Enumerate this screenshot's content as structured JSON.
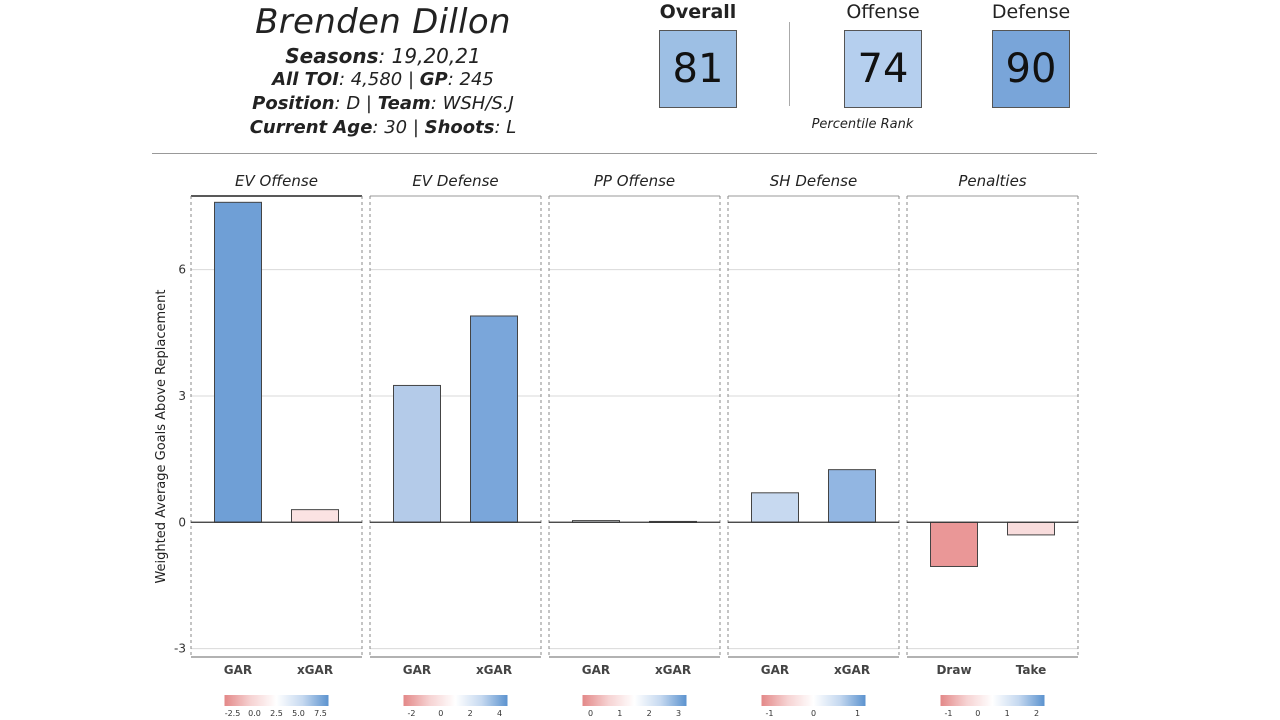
{
  "player": {
    "name": "Brenden Dillon",
    "seasons_label": "Seasons",
    "seasons": ": 19,20,21",
    "toi_label": "All TOI",
    "toi": ": 4,580 | ",
    "gp_label": "GP",
    "gp": ": 245",
    "position_label": "Position",
    "position": ": D | ",
    "team_label": "Team",
    "team": ": WSH/S.J",
    "age_label": "Current Age",
    "age": ": 30 | ",
    "shoots_label": "Shoots",
    "shoots": ": L"
  },
  "ratings": {
    "overall_label": "Overall",
    "overall": "81",
    "offense_label": "Offense",
    "offense": "74",
    "defense_label": "Defense",
    "defense": "90",
    "percentile_label": "Percentile Rank",
    "overall_color": "#9dbfe4",
    "offense_color": "#b5cfee",
    "defense_color": "#79a5d9"
  },
  "chart_data": {
    "type": "bar",
    "ylabel": "Weighted Average Goals Above Replacement",
    "ylim": [
      -3.2,
      7.75
    ],
    "yticks": [
      -3,
      0,
      3,
      6
    ],
    "grid": true,
    "facets": [
      {
        "title": "EV Offense",
        "categories": [
          "GAR",
          "xGAR"
        ],
        "values": [
          7.6,
          0.3
        ],
        "colors": [
          "#6f9fd6",
          "#fbe3e3"
        ],
        "legend_ticks": [
          "-2.5",
          "0.0",
          "2.5",
          "5.0",
          "7.5"
        ]
      },
      {
        "title": "EV Defense",
        "categories": [
          "GAR",
          "xGAR"
        ],
        "values": [
          3.25,
          4.9
        ],
        "colors": [
          "#b4cbe9",
          "#7aa6da"
        ],
        "legend_ticks": [
          "-2",
          "0",
          "2",
          "4"
        ]
      },
      {
        "title": "PP Offense",
        "categories": [
          "GAR",
          "xGAR"
        ],
        "values": [
          0.04,
          0.02
        ],
        "colors": [
          "#f1f4f8",
          "#f3f5f8"
        ],
        "legend_ticks": [
          "0",
          "1",
          "2",
          "3"
        ]
      },
      {
        "title": "SH Defense",
        "categories": [
          "GAR",
          "xGAR"
        ],
        "values": [
          0.7,
          1.25
        ],
        "colors": [
          "#c7d9f0",
          "#92b6e2"
        ],
        "legend_ticks": [
          "-1",
          "0",
          "1"
        ]
      },
      {
        "title": "Penalties",
        "categories": [
          "Draw",
          "Take"
        ],
        "values": [
          -1.05,
          -0.3
        ],
        "colors": [
          "#ea9797",
          "#f8dcdc"
        ],
        "legend_ticks": [
          "-1",
          "0",
          "1",
          "2"
        ]
      }
    ]
  }
}
